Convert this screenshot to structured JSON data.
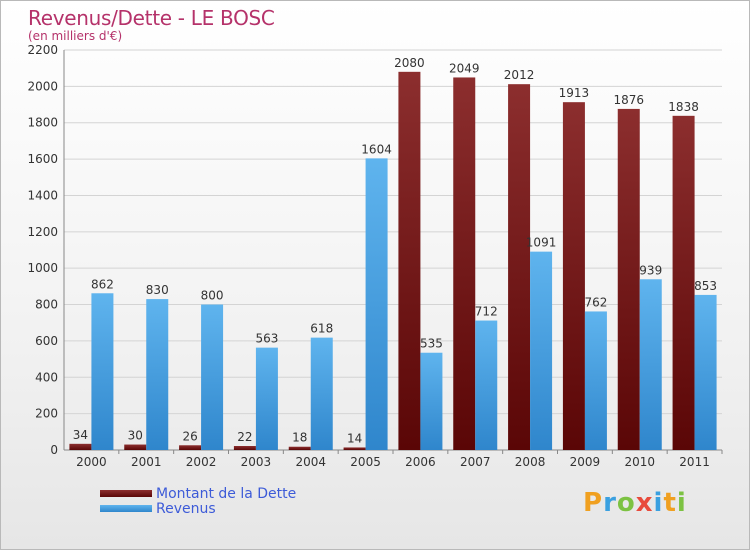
{
  "header": {
    "title": "Revenus/Dette - LE BOSC",
    "subtitle": "(en milliers d'€)"
  },
  "colors": {
    "dette": "#7a1a1a",
    "revenus": "#4da6e8",
    "axis_text": "#333333",
    "title": "#b5326a",
    "legend_text": "#3d5bd8"
  },
  "chart_data": {
    "type": "bar",
    "title": "Revenus/Dette - LE BOSC",
    "ylabel": "(en milliers d'€)",
    "categories": [
      "2000",
      "2001",
      "2002",
      "2003",
      "2004",
      "2005",
      "2006",
      "2007",
      "2008",
      "2009",
      "2010",
      "2011"
    ],
    "series": [
      {
        "name": "Montant de la Dette",
        "values": [
          34,
          30,
          26,
          22,
          18,
          14,
          2080,
          2049,
          2012,
          1913,
          1876,
          1838
        ]
      },
      {
        "name": "Revenus",
        "values": [
          862,
          830,
          800,
          563,
          618,
          1604,
          535,
          712,
          1091,
          762,
          939,
          853
        ]
      }
    ],
    "ylim": [
      0,
      2200
    ],
    "yticks": [
      0,
      200,
      400,
      600,
      800,
      1000,
      1200,
      1400,
      1600,
      1800,
      2000,
      2200
    ],
    "grid": true,
    "legend": "bottom-left"
  },
  "legend": {
    "items": [
      {
        "label": "Montant de la Dette"
      },
      {
        "label": "Revenus"
      }
    ]
  },
  "logo": {
    "letters": [
      {
        "ch": "P",
        "color": "#f0a020"
      },
      {
        "ch": "r",
        "color": "#3aa0e0"
      },
      {
        "ch": "o",
        "color": "#7cc242"
      },
      {
        "ch": "x",
        "color": "#e84b3c"
      },
      {
        "ch": "i",
        "color": "#3aa0e0"
      },
      {
        "ch": "t",
        "color": "#f0a020"
      },
      {
        "ch": "i",
        "color": "#7cc242"
      }
    ]
  }
}
